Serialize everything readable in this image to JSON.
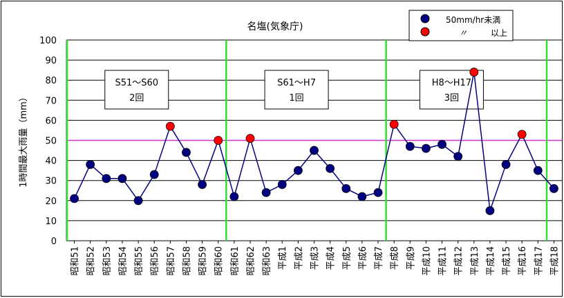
{
  "chart_data": {
    "type": "line",
    "title": "名塩(気象庁)",
    "ylabel": "1時間最大雨量（mm）",
    "ylim": [
      0,
      100
    ],
    "yticks": [
      0,
      10,
      20,
      30,
      40,
      50,
      60,
      70,
      80,
      90,
      100
    ],
    "grid": true,
    "categories": [
      "昭和51",
      "昭和52",
      "昭和53",
      "昭和54",
      "昭和55",
      "昭和56",
      "昭和57",
      "昭和58",
      "昭和59",
      "昭和60",
      "昭和61",
      "昭和62",
      "昭和63",
      "平成1",
      "平成2",
      "平成3",
      "平成4",
      "平成5",
      "平成6",
      "平成7",
      "平成8",
      "平成9",
      "平成10",
      "平成11",
      "平成12",
      "平成13",
      "平成14",
      "平成15",
      "平成16",
      "平成17",
      "平成18"
    ],
    "series": [
      {
        "values": [
          21,
          38,
          31,
          31,
          20,
          33,
          57,
          44,
          28,
          50,
          22,
          51,
          24,
          28,
          35,
          45,
          36,
          26,
          22,
          24,
          58,
          47,
          46,
          48,
          42,
          84,
          15,
          38,
          53,
          35,
          26
        ]
      }
    ],
    "threshold": 50,
    "threshold_color": "#cc33cc",
    "line_color": "#000080",
    "below_color": "#000080",
    "above_color": "#ff0000",
    "divider_color": "#33dd33",
    "legend": {
      "position": "top-right",
      "below_label": "50mm/hr未満",
      "above_mark": "〃",
      "above_label": "以上"
    },
    "period_dividers_after": [
      "昭和60",
      "平成7"
    ],
    "annotations": [
      {
        "line1": "S51～S60",
        "line2": "2回"
      },
      {
        "line1": "S61～H7",
        "line2": "1回"
      },
      {
        "line1": "H8～H17",
        "line2": "3回"
      }
    ]
  }
}
